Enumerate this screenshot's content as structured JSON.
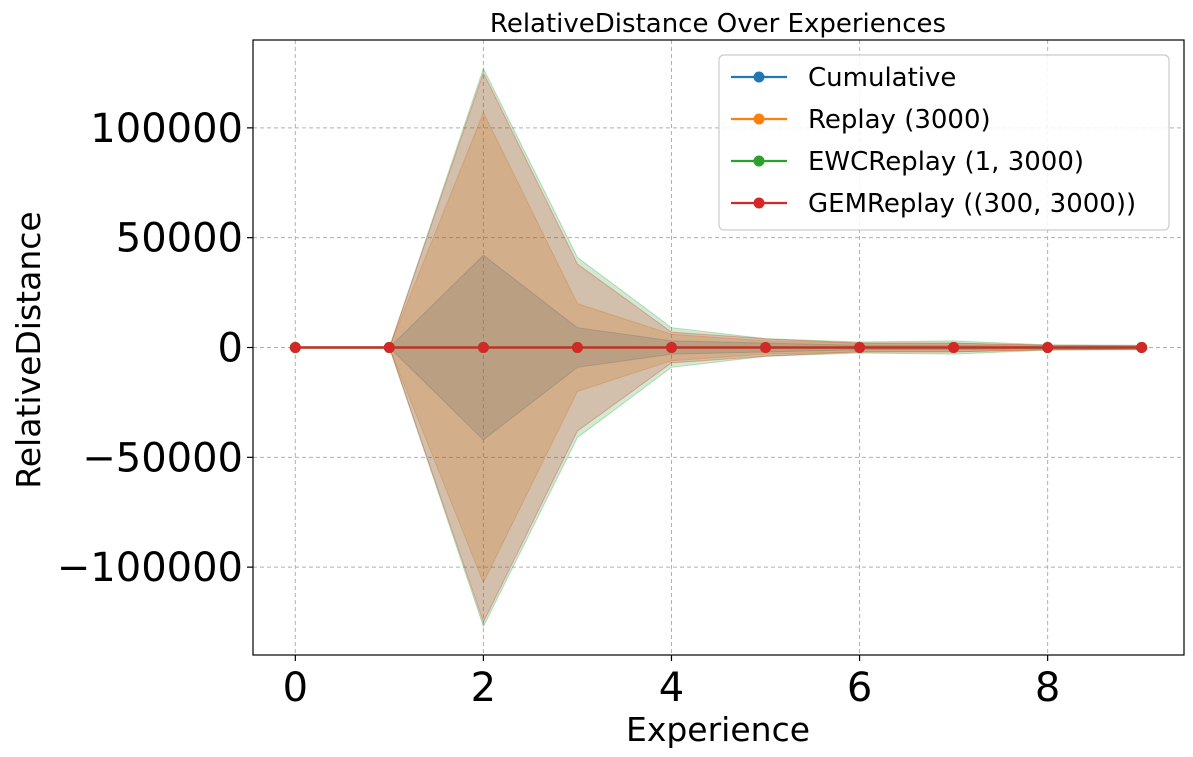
{
  "chart_data": {
    "type": "line",
    "title": "RelativeDistance Over Experiences",
    "xlabel": "Experience",
    "ylabel": "RelativeDistance",
    "x": [
      0,
      1,
      2,
      3,
      4,
      5,
      6,
      7,
      8,
      9
    ],
    "xlim": [
      -0.45,
      9.45
    ],
    "ylim": [
      -140000,
      140000
    ],
    "xticks": [
      0,
      2,
      4,
      6,
      8
    ],
    "xtick_labels": [
      "0",
      "2",
      "4",
      "6",
      "8"
    ],
    "yticks": [
      100000,
      50000,
      0,
      -50000,
      -100000
    ],
    "ytick_labels": [
      "100000",
      "50000",
      "0",
      "−50000",
      "−100000"
    ],
    "grid": true,
    "legend_position": "top-right",
    "series": [
      {
        "name": "Cumulative",
        "color": "#1f77b4",
        "values": [
          0,
          0,
          0,
          0,
          0,
          0,
          0,
          0,
          0,
          0
        ],
        "band": [
          0,
          0,
          42000,
          9000,
          3000,
          2000,
          1000,
          1000,
          500,
          500
        ]
      },
      {
        "name": "Replay (3000)",
        "color": "#ff7f0e",
        "values": [
          0,
          0,
          0,
          0,
          0,
          0,
          0,
          0,
          0,
          0
        ],
        "band": [
          0,
          0,
          107000,
          20000,
          6000,
          3000,
          2000,
          2000,
          1000,
          800
        ]
      },
      {
        "name": "EWCReplay (1, 3000)",
        "color": "#2ca02c",
        "values": [
          0,
          0,
          0,
          0,
          0,
          0,
          0,
          0,
          0,
          0
        ],
        "band": [
          0,
          0,
          127000,
          41000,
          9000,
          4000,
          2500,
          3000,
          1200,
          1000
        ]
      },
      {
        "name": "GEMReplay ((300, 3000))",
        "color": "#d62728",
        "values": [
          0,
          0,
          0,
          0,
          0,
          0,
          0,
          0,
          0,
          0
        ],
        "band": [
          0,
          0,
          125000,
          38000,
          7000,
          4000,
          2000,
          2000,
          1000,
          800
        ]
      }
    ]
  }
}
